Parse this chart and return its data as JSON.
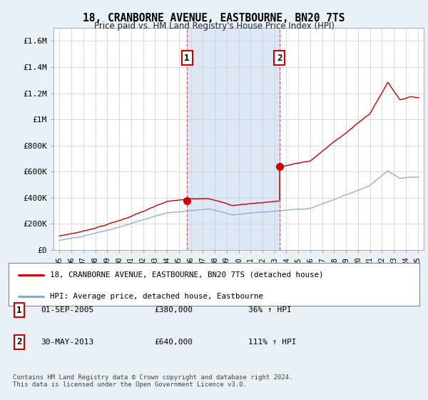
{
  "title": "18, CRANBORNE AVENUE, EASTBOURNE, BN20 7TS",
  "subtitle": "Price paid vs. HM Land Registry's House Price Index (HPI)",
  "ylabel_ticks": [
    "£0",
    "£200K",
    "£400K",
    "£600K",
    "£800K",
    "£1M",
    "£1.2M",
    "£1.4M",
    "£1.6M"
  ],
  "ylabel_values": [
    0,
    200000,
    400000,
    600000,
    800000,
    1000000,
    1200000,
    1400000,
    1600000
  ],
  "ylim": [
    0,
    1700000
  ],
  "xlim_start": 1994.5,
  "xlim_end": 2025.5,
  "sale1_x": 2005.67,
  "sale1_y": 380000,
  "sale2_x": 2013.41,
  "sale2_y": 640000,
  "red_color": "#cc0000",
  "blue_color": "#88aacc",
  "background_color": "#e8f0f8",
  "plot_bg_color": "#ffffff",
  "shade_color": "#dce8f5",
  "legend_line1": "18, CRANBORNE AVENUE, EASTBOURNE, BN20 7TS (detached house)",
  "legend_line2": "HPI: Average price, detached house, Eastbourne",
  "footnote": "Contains HM Land Registry data © Crown copyright and database right 2024.\nThis data is licensed under the Open Government Licence v3.0.",
  "sale1_date": "01-SEP-2005",
  "sale1_price": "£380,000",
  "sale1_hpi": "36% ↑ HPI",
  "sale2_date": "30-MAY-2013",
  "sale2_price": "£640,000",
  "sale2_hpi": "111% ↑ HPI"
}
